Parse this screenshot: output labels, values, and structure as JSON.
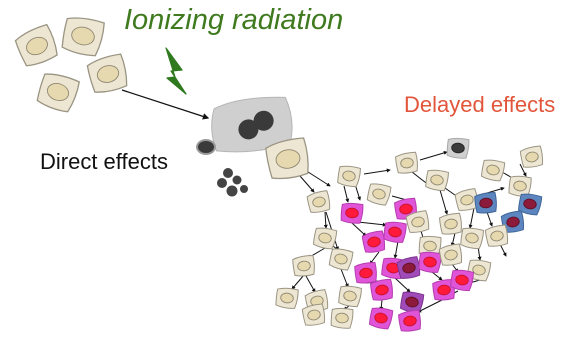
{
  "labels": {
    "title": "Ionizing radiation",
    "delayed": "Delayed effects",
    "direct": "Direct effects"
  },
  "colors": {
    "title": "#3f7a1f",
    "delayed": "#e2553a",
    "direct": "#111111",
    "cell_fill": "#ede6d3",
    "cell_edge": "#9a9483",
    "nucleus_fill": "#e6d9b0",
    "damaged_cell": "#cfcfcf",
    "dark_nucleus": "#3a3a3a",
    "magenta_cell": "#e055d8",
    "red_nucleus": "#ff1a3c",
    "purple_cell": "#a04bb8",
    "dark_red_nucleus": "#8c1a3a",
    "blue_cell": "#5d86c0",
    "lightning": "#2f7a1f",
    "arrow": "#111111"
  },
  "icons": {
    "lightning": "lightning-bolt-icon"
  }
}
